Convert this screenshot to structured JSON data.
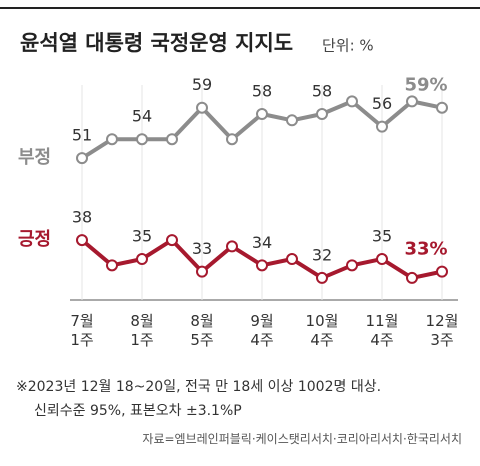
{
  "chart_data": {
    "type": "line",
    "title": "윤석열 대통령 국정운영 지지도",
    "unit_label": "단위: %",
    "categories": [
      "7월 1주",
      null,
      "8월 1주",
      null,
      "8월 5주",
      null,
      "9월 4주",
      null,
      "10월 4주",
      null,
      "11월 4주",
      null,
      "12월 3주"
    ],
    "series": [
      {
        "name": "부정",
        "color": "#8c8c8c",
        "values": [
          51,
          54,
          54,
          54,
          59,
          54,
          58,
          57,
          58,
          60,
          56,
          60,
          59
        ],
        "value_labels": [
          "51",
          null,
          "54",
          null,
          "59",
          null,
          "58",
          null,
          "58",
          null,
          "56",
          null,
          "59%"
        ]
      },
      {
        "name": "긍정",
        "color": "#a6192e",
        "values": [
          38,
          34,
          35,
          38,
          33,
          37,
          34,
          35,
          32,
          34,
          35,
          32,
          33
        ],
        "value_labels": [
          "38",
          null,
          "35",
          null,
          "33",
          null,
          "34",
          null,
          "32",
          null,
          "35",
          null,
          "33%"
        ]
      }
    ],
    "ylim": [
      28.5,
      62.6
    ],
    "notes": [
      "※2023년 12월 18~20일, 전국 만 18세 이상 1002명 대상.",
      "신뢰수준 95%, 표본오차 ±3.1%P"
    ],
    "source": "자료=엠브레인퍼블릭·케이스탯리서치·코리아리서치·한국리서치"
  }
}
